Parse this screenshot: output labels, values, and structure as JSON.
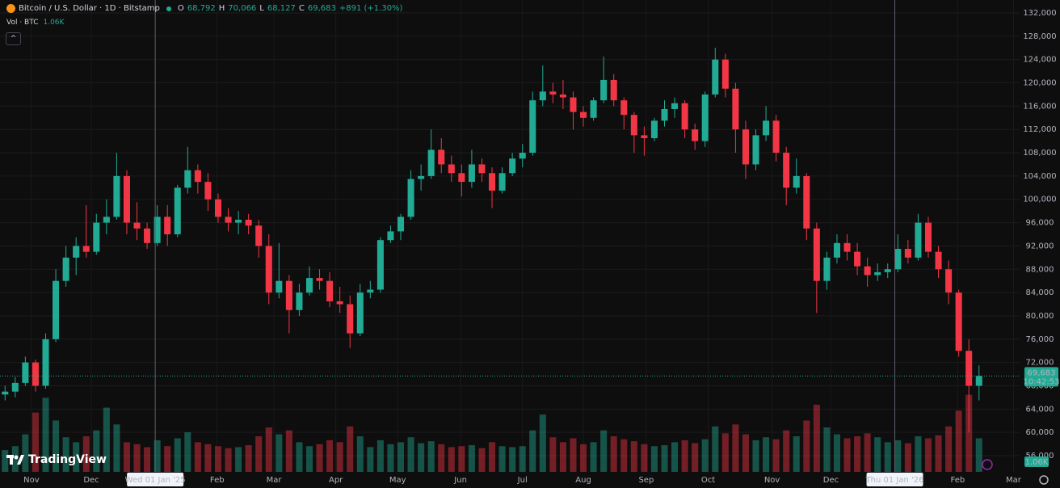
{
  "header": {
    "symbol": "Bitcoin / U.S. Dollar · 1D · Bitstamp",
    "ohlc": [
      {
        "key": "O",
        "value": "68,792"
      },
      {
        "key": "H",
        "value": "70,066"
      },
      {
        "key": "L",
        "value": "68,127"
      },
      {
        "key": "C",
        "value": "69,683"
      }
    ],
    "change": "+891 (+1.30%)",
    "volume_label": "Vol · BTC",
    "volume_value": "1.06K"
  },
  "price_badge": {
    "price": "69,683",
    "countdown": "10:42:53"
  },
  "volume_badge": "1.06K",
  "logo": "TradingView",
  "chart_data": {
    "type": "candlestick",
    "up_color": "#22ab94",
    "down_color": "#f23645",
    "grid": true,
    "xlim": [
      -0.5,
      100
    ],
    "xticks": [
      {
        "value": 2.6,
        "label": "Nov"
      },
      {
        "value": 8.5,
        "label": "Dec"
      },
      {
        "value": 14.8,
        "label": "Wed 01 Jan '25",
        "boxed": true
      },
      {
        "value": 20.9,
        "label": "Feb"
      },
      {
        "value": 26.5,
        "label": "Mar"
      },
      {
        "value": 32.6,
        "label": "Apr"
      },
      {
        "value": 38.7,
        "label": "May"
      },
      {
        "value": 44.9,
        "label": "Jun"
      },
      {
        "value": 51.0,
        "label": "Jul"
      },
      {
        "value": 57.0,
        "label": "Aug"
      },
      {
        "value": 63.2,
        "label": "Sep"
      },
      {
        "value": 69.3,
        "label": "Oct"
      },
      {
        "value": 75.6,
        "label": "Nov"
      },
      {
        "value": 81.4,
        "label": "Dec"
      },
      {
        "value": 87.7,
        "label": "Thu 01 Jan '26",
        "boxed": true
      },
      {
        "value": 93.9,
        "label": "Feb"
      },
      {
        "value": 99.4,
        "label": "Mar"
      }
    ],
    "ylim": [
      56000,
      132000
    ],
    "yticks": [
      {
        "value": 56000,
        "label": "56,000"
      },
      {
        "value": 60000,
        "label": "60,000"
      },
      {
        "value": 64000,
        "label": "64,000"
      },
      {
        "value": 68000,
        "label": "68,000"
      },
      {
        "value": 72000,
        "label": "72,000"
      },
      {
        "value": 76000,
        "label": "76,000"
      },
      {
        "value": 80000,
        "label": "80,000"
      },
      {
        "value": 84000,
        "label": "84,000"
      },
      {
        "value": 88000,
        "label": "88,000"
      },
      {
        "value": 92000,
        "label": "92,000"
      },
      {
        "value": 96000,
        "label": "96,000"
      },
      {
        "value": 100000,
        "label": "100,000"
      },
      {
        "value": 104000,
        "label": "104,000"
      },
      {
        "value": 108000,
        "label": "108,000"
      },
      {
        "value": 112000,
        "label": "112,000"
      },
      {
        "value": 116000,
        "label": "116,000"
      },
      {
        "value": 120000,
        "label": "120,000"
      },
      {
        "value": 124000,
        "label": "124,000"
      },
      {
        "value": 128000,
        "label": "128,000"
      },
      {
        "value": 132000,
        "label": "132,000"
      }
    ],
    "candles": [
      [
        66500,
        68000,
        65500,
        67000
      ],
      [
        67000,
        69500,
        66000,
        68500
      ],
      [
        68500,
        73000,
        68000,
        72000
      ],
      [
        72000,
        72500,
        67000,
        68000
      ],
      [
        68000,
        77000,
        67500,
        76000
      ],
      [
        76000,
        88000,
        75500,
        86000
      ],
      [
        86000,
        92000,
        85000,
        90000
      ],
      [
        90000,
        93500,
        87000,
        92000
      ],
      [
        92000,
        99000,
        90000,
        91000
      ],
      [
        91000,
        97500,
        90500,
        96000
      ],
      [
        96000,
        100000,
        94000,
        97000
      ],
      [
        97000,
        108000,
        96500,
        104000
      ],
      [
        104000,
        105000,
        94000,
        96000
      ],
      [
        96000,
        99500,
        93000,
        95000
      ],
      [
        95000,
        96000,
        91500,
        92500
      ],
      [
        92500,
        99000,
        92000,
        97000
      ],
      [
        97000,
        99000,
        92000,
        94000
      ],
      [
        94000,
        102500,
        93500,
        102000
      ],
      [
        102000,
        109000,
        101000,
        105000
      ],
      [
        105000,
        106000,
        101000,
        103000
      ],
      [
        103000,
        104500,
        98000,
        100000
      ],
      [
        100000,
        101000,
        96000,
        97000
      ],
      [
        97000,
        98500,
        94500,
        96000
      ],
      [
        96000,
        98000,
        94000,
        96500
      ],
      [
        96500,
        97500,
        94000,
        95500
      ],
      [
        95500,
        96500,
        90000,
        92000
      ],
      [
        92000,
        94000,
        82000,
        84000
      ],
      [
        84000,
        92500,
        83000,
        86000
      ],
      [
        86000,
        87000,
        77000,
        81000
      ],
      [
        81000,
        85500,
        80000,
        84000
      ],
      [
        84000,
        88500,
        83500,
        86500
      ],
      [
        86500,
        88000,
        84500,
        86000
      ],
      [
        86000,
        87500,
        81500,
        82500
      ],
      [
        82500,
        85000,
        80500,
        82000
      ],
      [
        82000,
        83500,
        74500,
        77000
      ],
      [
        77000,
        85500,
        76500,
        84000
      ],
      [
        84000,
        86000,
        83000,
        84500
      ],
      [
        84500,
        93500,
        84000,
        93000
      ],
      [
        93000,
        95500,
        92500,
        94500
      ],
      [
        94500,
        97500,
        93000,
        97000
      ],
      [
        97000,
        105000,
        96500,
        103500
      ],
      [
        103500,
        106000,
        101500,
        104000
      ],
      [
        104000,
        112000,
        103500,
        108500
      ],
      [
        108500,
        110500,
        104500,
        106000
      ],
      [
        106000,
        107500,
        103000,
        104500
      ],
      [
        104500,
        106000,
        100500,
        103000
      ],
      [
        103000,
        108500,
        102000,
        106000
      ],
      [
        106000,
        107000,
        103000,
        104500
      ],
      [
        104500,
        105500,
        98500,
        101500
      ],
      [
        101500,
        105500,
        101000,
        104500
      ],
      [
        104500,
        108000,
        104000,
        107000
      ],
      [
        107000,
        109500,
        105500,
        108000
      ],
      [
        108000,
        118500,
        107500,
        117000
      ],
      [
        117000,
        123000,
        116000,
        118500
      ],
      [
        118500,
        120000,
        116500,
        118000
      ],
      [
        118000,
        120500,
        115500,
        117500
      ],
      [
        117500,
        118500,
        112000,
        115000
      ],
      [
        115000,
        116000,
        112500,
        114000
      ],
      [
        114000,
        117500,
        113500,
        117000
      ],
      [
        117000,
        124500,
        116500,
        120500
      ],
      [
        120500,
        121500,
        116000,
        117000
      ],
      [
        117000,
        117500,
        112000,
        114500
      ],
      [
        114500,
        115000,
        108000,
        111000
      ],
      [
        111000,
        112500,
        107500,
        110500
      ],
      [
        110500,
        114000,
        110000,
        113500
      ],
      [
        113500,
        117000,
        112500,
        115500
      ],
      [
        115500,
        117500,
        114000,
        116500
      ],
      [
        116500,
        117000,
        110500,
        112000
      ],
      [
        112000,
        113000,
        108500,
        110000
      ],
      [
        110000,
        118500,
        109000,
        118000
      ],
      [
        118000,
        126000,
        117500,
        124000
      ],
      [
        124000,
        125000,
        117500,
        119000
      ],
      [
        119000,
        120000,
        108000,
        112000
      ],
      [
        112000,
        113500,
        103500,
        106000
      ],
      [
        106000,
        112000,
        105000,
        111000
      ],
      [
        111000,
        116000,
        110000,
        113500
      ],
      [
        113500,
        114500,
        106500,
        108000
      ],
      [
        108000,
        109000,
        99000,
        102000
      ],
      [
        102000,
        107000,
        101000,
        104000
      ],
      [
        104000,
        104500,
        93000,
        95000
      ],
      [
        95000,
        96000,
        80500,
        86000
      ],
      [
        86000,
        91000,
        84500,
        90000
      ],
      [
        90000,
        94000,
        89000,
        92500
      ],
      [
        92500,
        94000,
        89500,
        91000
      ],
      [
        91000,
        92500,
        87000,
        88500
      ],
      [
        88500,
        90000,
        85000,
        87000
      ],
      [
        87000,
        89000,
        86000,
        87500
      ],
      [
        87500,
        89000,
        86500,
        88000
      ],
      [
        88000,
        94000,
        87500,
        91500
      ],
      [
        91500,
        93000,
        89000,
        90000
      ],
      [
        90000,
        97500,
        89500,
        96000
      ],
      [
        96000,
        97000,
        90000,
        91000
      ],
      [
        91000,
        92000,
        86500,
        88000
      ],
      [
        88000,
        89500,
        82000,
        84000
      ],
      [
        84000,
        84500,
        73000,
        74000
      ],
      [
        74000,
        76000,
        60000,
        68000
      ],
      [
        68000,
        71500,
        65500,
        69683
      ]
    ],
    "volumes": [
      2200,
      2600,
      3800,
      6000,
      7500,
      5200,
      3500,
      3000,
      3600,
      4200,
      6500,
      4800,
      3000,
      2800,
      2500,
      3200,
      2600,
      3400,
      4000,
      3000,
      2800,
      2600,
      2400,
      2500,
      2700,
      3600,
      4500,
      3800,
      4200,
      3000,
      2600,
      2800,
      3200,
      3000,
      4600,
      3600,
      2500,
      3200,
      2800,
      3000,
      3500,
      2900,
      3100,
      2800,
      2500,
      2600,
      2700,
      2400,
      3000,
      2600,
      2500,
      2600,
      4200,
      5800,
      3500,
      3000,
      3400,
      2800,
      3000,
      4200,
      3600,
      3300,
      3100,
      2800,
      2600,
      2700,
      3000,
      3200,
      2900,
      3300,
      4600,
      3900,
      4800,
      3800,
      3200,
      3500,
      3300,
      4200,
      3600,
      5200,
      6800,
      4500,
      3800,
      3400,
      3600,
      3900,
      3500,
      3000,
      3200,
      2900,
      3600,
      3400,
      3700,
      4600,
      6200,
      7800,
      3400
    ],
    "vlim": [
      0,
      9000
    ]
  }
}
